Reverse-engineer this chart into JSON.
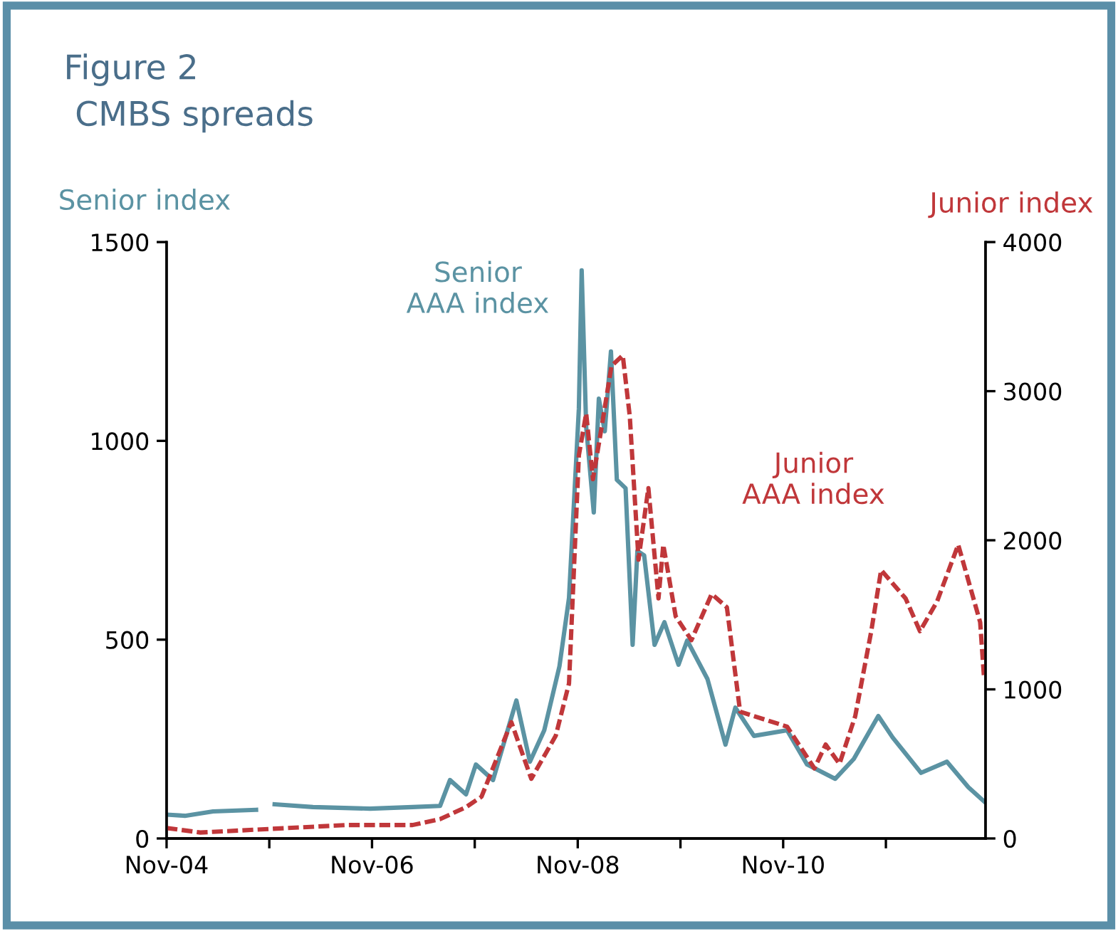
{
  "chart_data": {
    "type": "line",
    "title": "Figure 2",
    "subtitle": "CMBS spreads",
    "ylabel": "Senior index",
    "y2label": "Junior index",
    "xlim": [
      "2004-11-01",
      "2012-10-20"
    ],
    "xticks": [
      {
        "value": "2004-11-01",
        "label": "Nov-04"
      },
      {
        "value": "2005-11-01",
        "label": null
      },
      {
        "value": "2006-11-01",
        "label": "Nov-06"
      },
      {
        "value": "2007-11-01",
        "label": null
      },
      {
        "value": "2008-11-01",
        "label": "Nov-08"
      },
      {
        "value": "2009-11-01",
        "label": null
      },
      {
        "value": "2010-11-01",
        "label": "Nov-10"
      },
      {
        "value": "2011-11-01",
        "label": null
      }
    ],
    "ylim": [
      0,
      1500
    ],
    "yticks": [
      0,
      500,
      1000,
      1500
    ],
    "y2lim": [
      0,
      4000
    ],
    "y2ticks": [
      0,
      1000,
      2000,
      3000,
      4000
    ],
    "grid": false,
    "legend": false,
    "marker": "none",
    "series": [
      {
        "name": "Senior\nAAA index",
        "color": "#5b93a3",
        "line_style": "solid",
        "x": [
          "2004-11-01",
          "2005-01-05",
          "2005-04-15",
          "2005-09-15",
          "2005-10-10",
          "2005-11-20",
          "2006-04-05",
          "2006-10-25",
          "2007-03-25",
          "2007-07-01",
          "2007-08-05",
          "2007-10-01",
          "2007-11-05",
          "2008-01-05",
          "2008-03-28",
          "2008-05-15",
          "2008-07-05",
          "2008-08-28",
          "2008-10-01",
          "2008-11-05",
          "2008-11-15",
          "2008-12-01",
          "2008-12-28",
          "2009-01-15",
          "2009-02-05",
          "2009-02-27",
          "2009-03-20",
          "2009-04-20",
          "2009-05-15",
          "2009-06-01",
          "2009-06-25",
          "2009-08-01",
          "2009-09-05",
          "2009-10-25",
          "2009-11-25",
          "2010-02-05",
          "2010-04-10",
          "2010-05-15",
          "2010-07-20",
          "2010-11-15",
          "2011-01-25",
          "2011-05-05",
          "2011-07-10",
          "2011-10-05",
          "2011-11-25",
          "2012-03-05",
          "2012-06-05",
          "2012-08-20",
          "2012-10-15"
        ],
        "values": [
          60,
          57,
          68,
          72,
          null,
          86,
          79,
          75,
          79,
          82,
          147,
          111,
          186,
          147,
          347,
          193,
          272,
          433,
          605,
          1081,
          1429,
          1035,
          820,
          1106,
          1024,
          1225,
          902,
          881,
          487,
          723,
          712,
          487,
          544,
          437,
          498,
          401,
          236,
          329,
          258,
          272,
          186,
          150,
          200,
          308,
          254,
          165,
          193,
          129,
          93
        ]
      },
      {
        "name": "Junior\nAAA index",
        "color": "#c0373a",
        "line_style": "dashed",
        "axis": "y2",
        "x": [
          "2004-11-01",
          "2005-03-01",
          "2006-08-01",
          "2007-03-25",
          "2007-07-01",
          "2007-10-01",
          "2007-11-25",
          "2008-03-10",
          "2008-05-20",
          "2008-08-15",
          "2008-10-01",
          "2008-11-05",
          "2008-12-01",
          "2008-12-25",
          "2009-01-25",
          "2009-03-01",
          "2009-04-10",
          "2009-05-05",
          "2009-06-05",
          "2009-07-10",
          "2009-08-15",
          "2009-09-01",
          "2009-10-15",
          "2009-12-10",
          "2010-02-20",
          "2010-04-15",
          "2010-06-01",
          "2010-11-15",
          "2011-02-20",
          "2011-04-01",
          "2011-05-20",
          "2011-07-15",
          "2011-09-10",
          "2011-10-15",
          "2012-01-10",
          "2012-03-01",
          "2012-05-01",
          "2012-07-15",
          "2012-10-01",
          "2012-10-15"
        ],
        "values": [
          70,
          40,
          90,
          90,
          130,
          210,
          280,
          780,
          400,
          690,
          1040,
          2570,
          2850,
          2410,
          2760,
          3170,
          3240,
          2830,
          1870,
          2350,
          1610,
          1970,
          1490,
          1330,
          1640,
          1550,
          850,
          750,
          470,
          630,
          500,
          820,
          1390,
          1800,
          1610,
          1390,
          1590,
          1970,
          1450,
          1070
        ]
      }
    ]
  }
}
